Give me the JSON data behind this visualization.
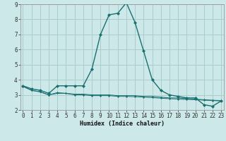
{
  "title": "",
  "xlabel": "Humidex (Indice chaleur)",
  "background_color": "#cce8e8",
  "grid_color": "#aacccc",
  "line_color": "#1a7070",
  "x": [
    0,
    1,
    2,
    3,
    4,
    5,
    6,
    7,
    8,
    9,
    10,
    11,
    12,
    13,
    14,
    15,
    16,
    17,
    18,
    19,
    20,
    21,
    22,
    23
  ],
  "series1": [
    3.6,
    3.4,
    3.3,
    3.1,
    3.6,
    3.6,
    3.6,
    3.6,
    4.7,
    7.0,
    8.3,
    8.4,
    9.1,
    7.8,
    5.9,
    4.0,
    3.3,
    3.0,
    2.9,
    2.8,
    2.8,
    2.35,
    2.25,
    2.6
  ],
  "series2": [
    3.6,
    3.3,
    3.2,
    3.0,
    3.15,
    3.1,
    3.05,
    3.05,
    3.0,
    3.0,
    3.0,
    2.95,
    2.95,
    2.95,
    2.9,
    2.9,
    2.85,
    2.8,
    2.8,
    2.75,
    2.72,
    2.68,
    2.65,
    2.62
  ],
  "series3": [
    3.55,
    3.3,
    3.2,
    3.0,
    3.1,
    3.1,
    3.0,
    3.0,
    2.95,
    2.95,
    2.95,
    2.9,
    2.9,
    2.88,
    2.85,
    2.82,
    2.78,
    2.75,
    2.72,
    2.7,
    2.68,
    2.65,
    2.62,
    2.6
  ],
  "ylim": [
    2,
    9
  ],
  "xlim": [
    -0.3,
    23.3
  ],
  "yticks": [
    2,
    3,
    4,
    5,
    6,
    7,
    8,
    9
  ],
  "xticks": [
    0,
    1,
    2,
    3,
    4,
    5,
    6,
    7,
    8,
    9,
    10,
    11,
    12,
    13,
    14,
    15,
    16,
    17,
    18,
    19,
    20,
    21,
    22,
    23
  ],
  "tick_fontsize": 5.5,
  "xlabel_fontsize": 6.0
}
